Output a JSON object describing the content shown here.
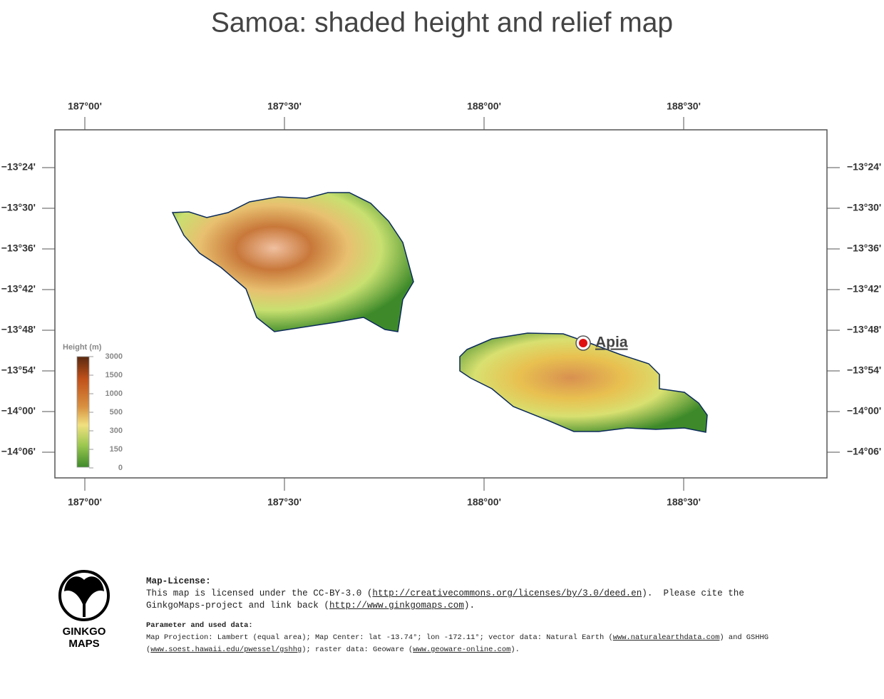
{
  "title": "Samoa: shaded height and relief map",
  "map": {
    "lon_ticks": [
      "187°00'",
      "187°30'",
      "188°00'",
      "188°30'"
    ],
    "lat_ticks": [
      "−13°24'",
      "−13°30'",
      "−13°36'",
      "−13°42'",
      "−13°48'",
      "−13°54'",
      "−14°00'",
      "−14°06'"
    ],
    "city": {
      "name": "Apia"
    },
    "legend": {
      "title": "Height (m)",
      "labels": [
        3000,
        1500,
        1000,
        500,
        300,
        150,
        0
      ]
    }
  },
  "logo": {
    "line1": "GINKGO",
    "line2": "MAPS"
  },
  "footer": {
    "license": {
      "heading": "Map-License:",
      "parts": [
        {
          "text": "This map is licensed under the CC-BY-3.0 ("
        },
        {
          "link": "http://creativecommons.org/licenses/by/3.0/deed.en"
        },
        {
          "text": ").  Please cite the GinkgoMaps-project and link back ("
        },
        {
          "link": "http://www.ginkgomaps.com"
        },
        {
          "text": ")."
        }
      ]
    },
    "params": {
      "heading": "Parameter and used data:",
      "parts": [
        {
          "text": "Map Projection: Lambert (equal area); Map Center: lat -13.74°; lon -172.11°; vector data: Natural Earth ("
        },
        {
          "link": "www.naturalearthdata.com"
        },
        {
          "text": ") and GSHHG ("
        },
        {
          "link": "www.soest.hawaii.edu/pwessel/gshhg"
        },
        {
          "text": "); raster data: Geoware ("
        },
        {
          "link": "www.geoware-online.com"
        },
        {
          "text": ")."
        }
      ]
    }
  }
}
